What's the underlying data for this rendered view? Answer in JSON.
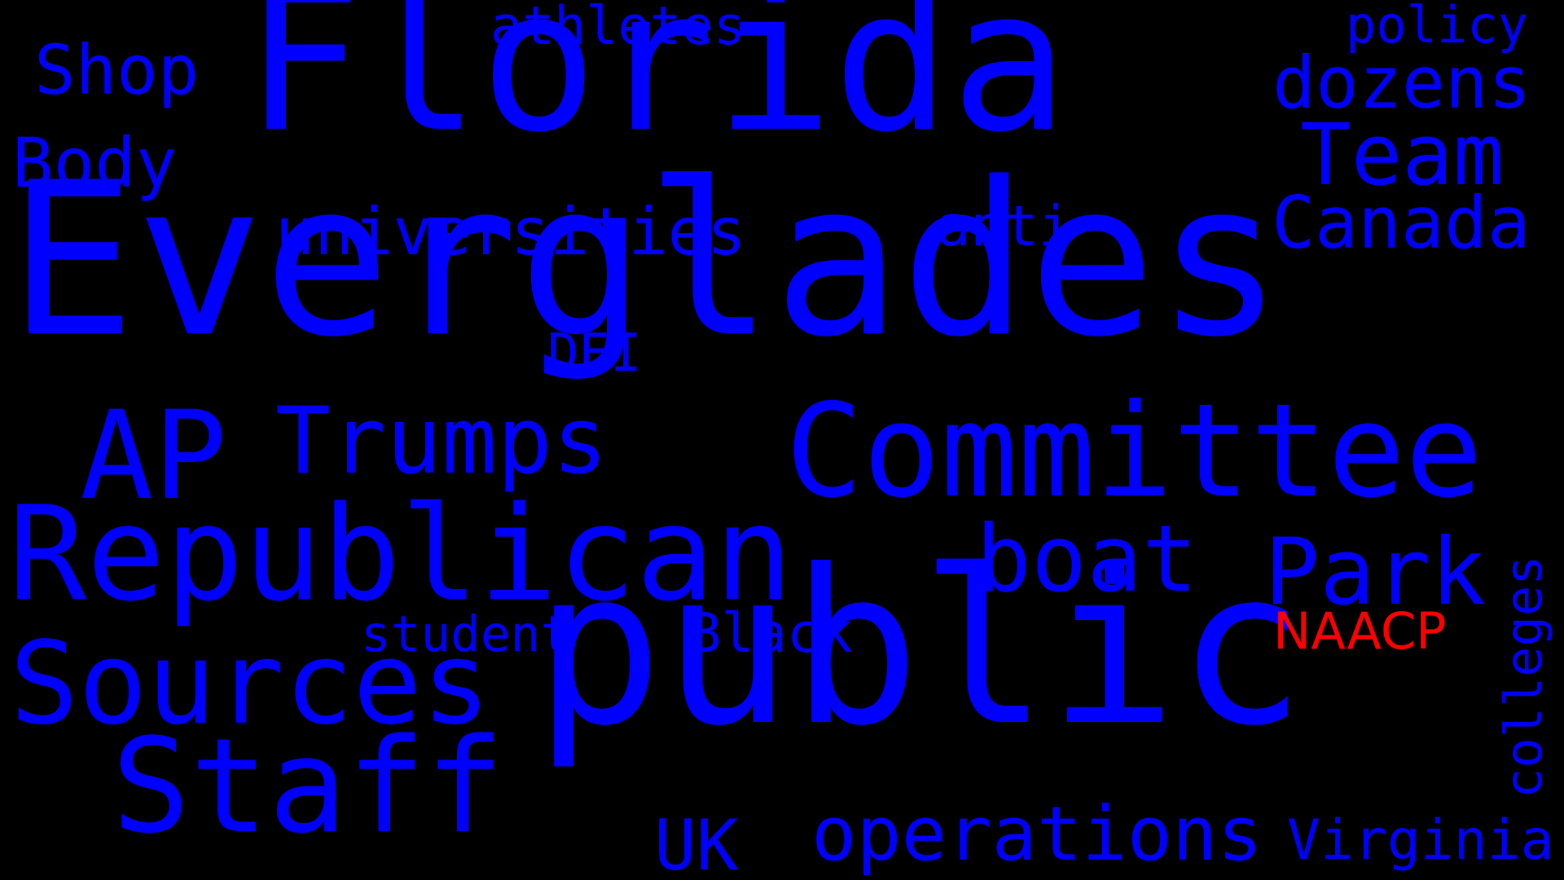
{
  "background_color": "#000000",
  "word_color": "#0000ff",
  "highlight_color": "#ff0000",
  "words": [
    {
      "text": "Everglades",
      "color": "#0000ff"
    },
    {
      "text": "public",
      "color": "#0000ff"
    },
    {
      "text": "Florida",
      "color": "#0000ff"
    },
    {
      "text": "Committee",
      "color": "#0000ff"
    },
    {
      "text": "Republican",
      "color": "#0000ff"
    },
    {
      "text": "Staff",
      "color": "#0000ff"
    },
    {
      "text": "Sources",
      "color": "#0000ff"
    },
    {
      "text": "AP",
      "color": "#0000ff"
    },
    {
      "text": "Trumps",
      "color": "#0000ff"
    },
    {
      "text": "boat",
      "color": "#0000ff"
    },
    {
      "text": "Park",
      "color": "#0000ff"
    },
    {
      "text": "operations",
      "color": "#0000ff"
    },
    {
      "text": "Team",
      "color": "#0000ff"
    },
    {
      "text": "universities",
      "color": "#0000ff"
    },
    {
      "text": "dozens",
      "color": "#0000ff"
    },
    {
      "text": "Canada",
      "color": "#0000ff"
    },
    {
      "text": "Body",
      "color": "#0000ff"
    },
    {
      "text": "Shop",
      "color": "#0000ff"
    },
    {
      "text": "UK",
      "color": "#0000ff"
    },
    {
      "text": "Virginia",
      "color": "#0000ff"
    },
    {
      "text": "athletes",
      "color": "#0000ff"
    },
    {
      "text": "Black",
      "color": "#0000ff"
    },
    {
      "text": "student",
      "color": "#0000ff"
    },
    {
      "text": "anti",
      "color": "#0000ff"
    },
    {
      "text": "policy",
      "color": "#0000ff"
    },
    {
      "text": "colleges",
      "color": "#0000ff"
    },
    {
      "text": "DEI",
      "color": "#0000ff"
    },
    {
      "text": "NAACP",
      "color": "#ff0000"
    }
  ]
}
